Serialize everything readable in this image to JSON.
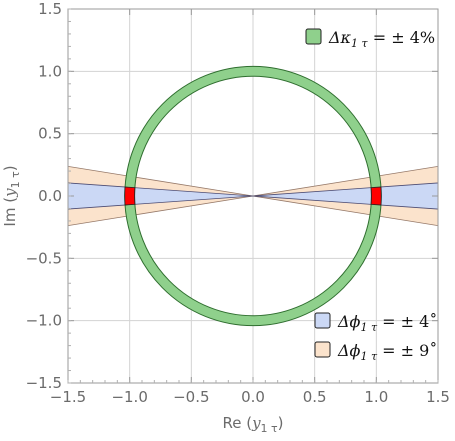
{
  "chart_data": {
    "type": "scatter",
    "title": "",
    "xlabel": {
      "main": "Re",
      "var": "y",
      "sub": "1 τ"
    },
    "ylabel": {
      "main": "Im",
      "var": "y",
      "sub": "1 τ"
    },
    "xlim": [
      -1.5,
      1.5
    ],
    "ylim": [
      -1.5,
      1.5
    ],
    "x_ticks": [
      -1.5,
      -1.0,
      -0.5,
      0.0,
      0.5,
      1.0,
      1.5
    ],
    "y_ticks": [
      -1.5,
      -1.0,
      -0.5,
      0.0,
      0.5,
      1.0,
      1.5
    ],
    "x_tick_labels": [
      "−1.5",
      "−1.0",
      "−0.5",
      "0.0",
      "0.5",
      "1.0",
      "1.5"
    ],
    "y_tick_labels": [
      "−1.5",
      "−1.0",
      "−0.5",
      "0.0",
      "0.5",
      "1.0",
      "1.5"
    ],
    "grid": true,
    "series": [
      {
        "name": "Δκ",
        "sub": "1 τ",
        "value": "= ± 4%",
        "kind": "ring",
        "r_min": 0.96,
        "r_max": 1.04,
        "color": "#8fd08c",
        "stroke": "#2f6e2f"
      },
      {
        "name": "Δϕ",
        "sub": "1 τ",
        "value": "= ± 4˚",
        "kind": "wedge",
        "half_angle_deg": 4,
        "color": "#cbd8f5",
        "stroke": "#3c3c66"
      },
      {
        "name": "Δϕ",
        "sub": "1 τ",
        "value": "= ± 9˚",
        "kind": "wedge",
        "half_angle_deg": 9,
        "color": "#fbe3cc",
        "stroke": "#8a6a5a"
      }
    ],
    "overlap": {
      "color": "#ff0000",
      "r_min": 0.96,
      "r_max": 1.04,
      "half_angle_deg": 4
    },
    "legend": [
      {
        "series": 0,
        "placement": "top-right"
      },
      {
        "series": 1,
        "placement": "bottom-right"
      },
      {
        "series": 2,
        "placement": "bottom-right"
      }
    ]
  }
}
